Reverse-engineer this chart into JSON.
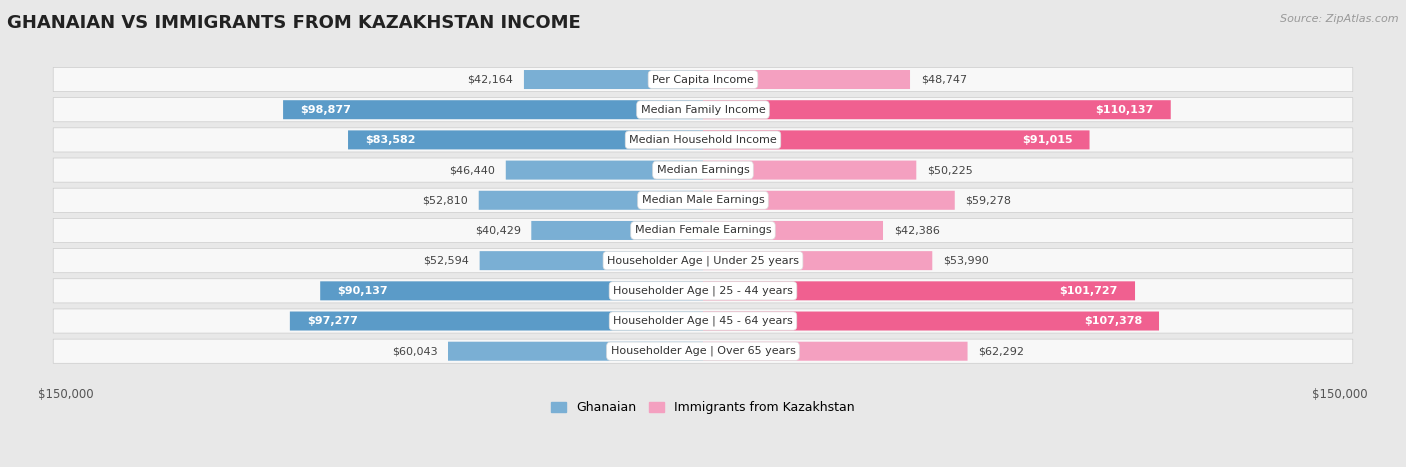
{
  "title": "GHANAIAN VS IMMIGRANTS FROM KAZAKHSTAN INCOME",
  "source": "Source: ZipAtlas.com",
  "categories": [
    "Per Capita Income",
    "Median Family Income",
    "Median Household Income",
    "Median Earnings",
    "Median Male Earnings",
    "Median Female Earnings",
    "Householder Age | Under 25 years",
    "Householder Age | 25 - 44 years",
    "Householder Age | 45 - 64 years",
    "Householder Age | Over 65 years"
  ],
  "ghanaian": [
    42164,
    98877,
    83582,
    46440,
    52810,
    40429,
    52594,
    90137,
    97277,
    60043
  ],
  "kazakhstan": [
    48747,
    110137,
    91015,
    50225,
    59278,
    42386,
    53990,
    101727,
    107378,
    62292
  ],
  "max_val": 150000,
  "bar_color_ghana": "#7aafd4",
  "bar_color_ghana_dark": "#5b9bc8",
  "bar_color_kazakh": "#f4a0c0",
  "bar_color_kazakh_dark": "#f06090",
  "label_color_dark": "#444444",
  "label_color_white": "#ffffff",
  "bg_color": "#e8e8e8",
  "row_bg_color": "#f8f8f8",
  "legend_ghana": "Ghanaian",
  "legend_kazakh": "Immigrants from Kazakhstan",
  "inside_threshold": 68000,
  "font_size_label": 8.0,
  "font_size_value": 8.0,
  "font_size_axis": 8.5,
  "font_size_title": 13
}
